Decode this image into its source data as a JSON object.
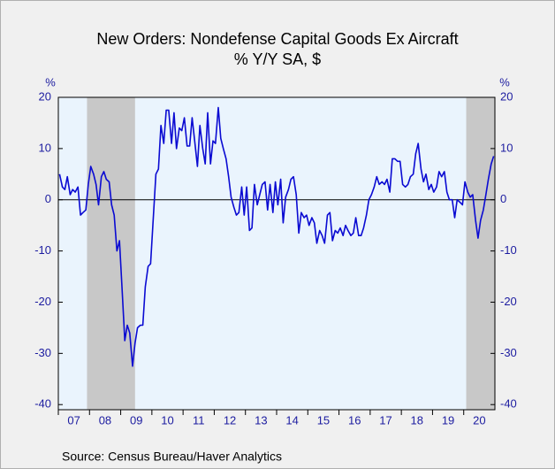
{
  "chart_data": {
    "type": "line",
    "title": "New Orders: Nondefense Capital Goods Ex Aircraft",
    "subtitle": "% Y/Y   SA, $",
    "y_unit": "%",
    "y2_unit": "%",
    "source": "Source:  Census Bureau/Haver Analytics",
    "color": "#0a0ad2",
    "shade_color": "#c8c8c8",
    "shaded_periods": [
      [
        2007.92,
        2009.46
      ],
      [
        2020.08,
        2021
      ]
    ],
    "xlim": [
      2007,
      2021
    ],
    "xticks": [
      {
        "value": 2007.5,
        "label": "07"
      },
      {
        "value": 2008.5,
        "label": "08"
      },
      {
        "value": 2009.5,
        "label": "09"
      },
      {
        "value": 2010.5,
        "label": "10"
      },
      {
        "value": 2011.5,
        "label": "11"
      },
      {
        "value": 2012.5,
        "label": "12"
      },
      {
        "value": 2013.5,
        "label": "13"
      },
      {
        "value": 2014.5,
        "label": "14"
      },
      {
        "value": 2015.5,
        "label": "15"
      },
      {
        "value": 2016.5,
        "label": "16"
      },
      {
        "value": 2017.5,
        "label": "17"
      },
      {
        "value": 2018.5,
        "label": "18"
      },
      {
        "value": 2019.5,
        "label": "19"
      },
      {
        "value": 2020.5,
        "label": "20"
      }
    ],
    "ylim": [
      -41,
      20
    ],
    "yticks": [
      -40,
      -30,
      -20,
      -10,
      0,
      10,
      20
    ],
    "y2lim": [
      -41,
      20
    ],
    "y2ticks": [
      -40,
      -30,
      -20,
      -10,
      0,
      10,
      20
    ],
    "x": [
      2007.04,
      2007.13,
      2007.21,
      2007.29,
      2007.38,
      2007.46,
      2007.54,
      2007.63,
      2007.71,
      2007.79,
      2007.88,
      2007.96,
      2008.04,
      2008.13,
      2008.21,
      2008.29,
      2008.38,
      2008.46,
      2008.54,
      2008.63,
      2008.71,
      2008.79,
      2008.88,
      2008.96,
      2009.04,
      2009.13,
      2009.21,
      2009.29,
      2009.38,
      2009.46,
      2009.54,
      2009.63,
      2009.71,
      2009.79,
      2009.88,
      2009.96,
      2010.04,
      2010.13,
      2010.21,
      2010.29,
      2010.38,
      2010.46,
      2010.54,
      2010.63,
      2010.71,
      2010.79,
      2010.88,
      2010.96,
      2011.04,
      2011.13,
      2011.21,
      2011.29,
      2011.38,
      2011.46,
      2011.54,
      2011.63,
      2011.71,
      2011.79,
      2011.88,
      2011.96,
      2012.04,
      2012.13,
      2012.21,
      2012.29,
      2012.38,
      2012.46,
      2012.54,
      2012.63,
      2012.71,
      2012.79,
      2012.88,
      2012.96,
      2013.04,
      2013.13,
      2013.21,
      2013.29,
      2013.38,
      2013.46,
      2013.54,
      2013.63,
      2013.71,
      2013.79,
      2013.88,
      2013.96,
      2014.04,
      2014.13,
      2014.21,
      2014.29,
      2014.38,
      2014.46,
      2014.54,
      2014.63,
      2014.71,
      2014.79,
      2014.88,
      2014.96,
      2015.04,
      2015.13,
      2015.21,
      2015.29,
      2015.38,
      2015.46,
      2015.54,
      2015.63,
      2015.71,
      2015.79,
      2015.88,
      2015.96,
      2016.04,
      2016.13,
      2016.21,
      2016.29,
      2016.38,
      2016.46,
      2016.54,
      2016.63,
      2016.71,
      2016.79,
      2016.88,
      2016.96,
      2017.04,
      2017.13,
      2017.21,
      2017.29,
      2017.38,
      2017.46,
      2017.54,
      2017.63,
      2017.71,
      2017.79,
      2017.88,
      2017.96,
      2018.04,
      2018.13,
      2018.21,
      2018.29,
      2018.38,
      2018.46,
      2018.54,
      2018.63,
      2018.71,
      2018.79,
      2018.88,
      2018.96,
      2019.04,
      2019.13,
      2019.21,
      2019.29,
      2019.38,
      2019.46,
      2019.54,
      2019.63,
      2019.71,
      2019.79,
      2019.88,
      2019.96,
      2020.04,
      2020.13,
      2020.21,
      2020.29,
      2020.38,
      2020.46,
      2020.54,
      2020.63,
      2020.71,
      2020.79,
      2020.88,
      2020.96
    ],
    "values": [
      5,
      2.5,
      2,
      4.5,
      1,
      2,
      1.5,
      2.5,
      -3,
      -2.5,
      -2,
      3,
      6.5,
      5,
      3,
      -1,
      4.5,
      5.5,
      4,
      3.5,
      -1,
      -3,
      -10,
      -8,
      -17,
      -27.5,
      -24.5,
      -26,
      -32.5,
      -28,
      -25,
      -24.5,
      -24.5,
      -17,
      -13,
      -12.5,
      -4,
      5,
      6,
      14.5,
      11,
      17.5,
      17.5,
      11,
      17,
      10,
      14,
      13.5,
      16,
      10.5,
      10.5,
      16,
      11,
      6.5,
      14.5,
      10,
      7,
      17,
      7,
      11.5,
      11,
      18,
      12,
      10,
      8,
      4.5,
      0.5,
      -1.5,
      -3,
      -2.5,
      2.5,
      -3,
      2.5,
      -6,
      -5.5,
      3,
      -1,
      1,
      3,
      3.5,
      -2,
      3,
      -2.5,
      3.5,
      -1,
      4,
      -4.5,
      0.5,
      2,
      4,
      4.5,
      1,
      -6.5,
      -2.5,
      -3.5,
      -3,
      -5,
      -3.5,
      -4.5,
      -8.5,
      -6,
      -7,
      -8.5,
      -3,
      -2.5,
      -8,
      -6,
      -6.5,
      -5.5,
      -7,
      -5,
      -6,
      -7,
      -6.5,
      -3.5,
      -7,
      -7,
      -5.5,
      -3,
      0,
      1,
      2.5,
      4.5,
      3,
      3.5,
      3,
      4,
      1.5,
      8,
      8,
      7.5,
      7.5,
      3,
      2.5,
      3,
      4.5,
      5,
      9,
      11,
      6,
      3.5,
      5,
      2,
      3,
      1.5,
      2.5,
      5.5,
      4.5,
      5.5,
      1.5,
      0,
      0,
      -3.5,
      0,
      -0.5,
      -1,
      3.5,
      1.5,
      0.5,
      1,
      -4,
      -7.5,
      -4,
      -2,
      1,
      4,
      7,
      8.5
    ]
  }
}
